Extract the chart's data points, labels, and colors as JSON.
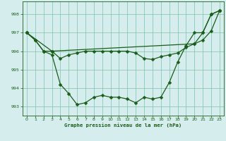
{
  "bg_color": "#d5eeed",
  "grid_color": "#7fbfaa",
  "line_color": "#1a5c1a",
  "xlabel": "Graphe pression niveau de la mer (hPa)",
  "xlim": [
    -0.5,
    23.5
  ],
  "ylim": [
    992.5,
    998.7
  ],
  "yticks": [
    993,
    994,
    995,
    996,
    997,
    998
  ],
  "xticks": [
    0,
    1,
    2,
    3,
    4,
    5,
    6,
    7,
    8,
    9,
    10,
    11,
    12,
    13,
    14,
    15,
    16,
    17,
    18,
    19,
    20,
    21,
    22,
    23
  ],
  "line1_x": [
    0,
    1,
    2,
    3,
    4,
    5,
    6,
    7,
    8,
    9,
    10,
    11,
    12,
    13,
    14,
    15,
    16,
    17,
    18,
    19,
    20,
    21,
    22,
    23
  ],
  "line1_y": [
    997.0,
    996.6,
    996.0,
    995.8,
    994.2,
    993.7,
    993.1,
    993.2,
    993.5,
    993.6,
    993.5,
    993.5,
    993.4,
    993.2,
    993.5,
    993.4,
    993.5,
    994.3,
    995.4,
    996.3,
    997.0,
    997.0,
    998.0,
    998.2
  ],
  "line2_x": [
    0,
    1,
    2,
    3,
    4,
    5,
    6,
    7,
    8,
    9,
    10,
    11,
    12,
    13,
    14,
    15,
    16,
    17,
    18,
    19,
    20,
    21,
    22,
    23
  ],
  "line2_y": [
    997.0,
    996.6,
    996.0,
    996.0,
    995.6,
    995.8,
    995.9,
    996.0,
    996.0,
    996.0,
    996.0,
    996.0,
    996.0,
    995.9,
    995.6,
    995.55,
    995.7,
    995.8,
    995.9,
    996.2,
    996.4,
    996.6,
    997.1,
    998.2
  ],
  "line3_x": [
    0,
    3,
    20,
    21,
    22,
    23
  ],
  "line3_y": [
    997.0,
    996.0,
    996.4,
    997.0,
    998.0,
    998.2
  ],
  "marker_size": 2.5,
  "linewidth": 0.9
}
